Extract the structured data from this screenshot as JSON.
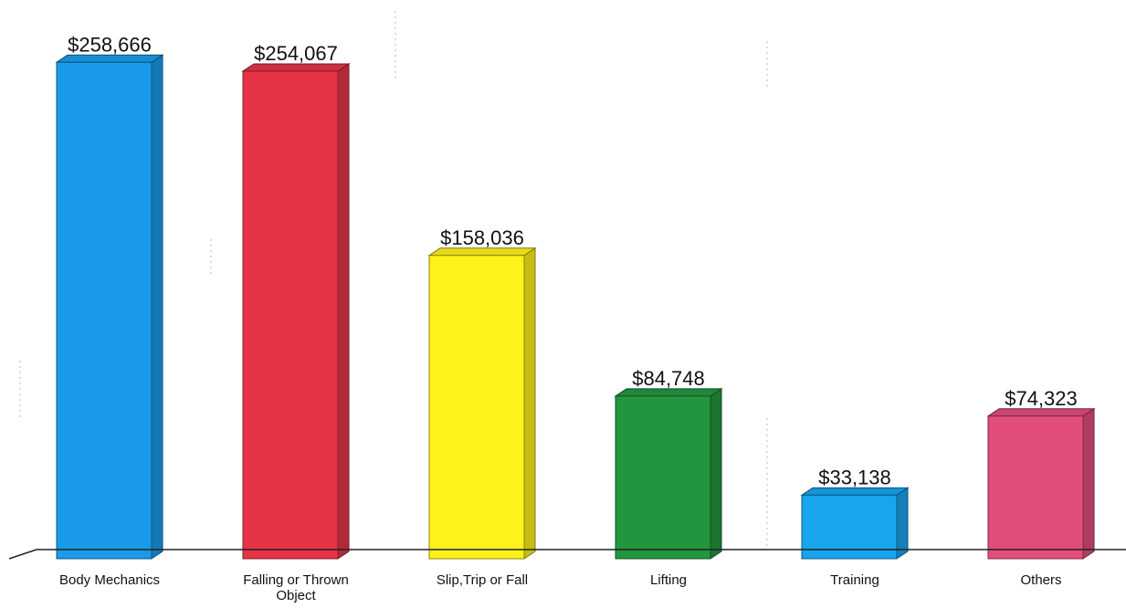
{
  "chart_data": {
    "type": "bar",
    "categories": [
      "Body Mechanics",
      "Falling or Thrown Object",
      "Slip,Trip or Fall",
      "Lifting",
      "Training",
      "Others"
    ],
    "category_lines": [
      [
        "Body Mechanics"
      ],
      [
        "Falling or Thrown",
        "Object"
      ],
      [
        "Slip,Trip or Fall"
      ],
      [
        "Lifting"
      ],
      [
        "Training"
      ],
      [
        "Others"
      ]
    ],
    "values": [
      258666,
      254067,
      158036,
      84748,
      33138,
      74323
    ],
    "data_labels": [
      "$258,666",
      "$254,067",
      "$158,036",
      "$84,748",
      "$33,138",
      "$74,323"
    ],
    "bar_colors": [
      "#1a9bea",
      "#e63446",
      "#fff21a",
      "#22963f",
      "#19a4ee",
      "#e34d7c"
    ],
    "style": "3d-column",
    "ylim": [
      0,
      280000
    ],
    "grid": false,
    "title": "",
    "xlabel": "",
    "ylabel": ""
  }
}
